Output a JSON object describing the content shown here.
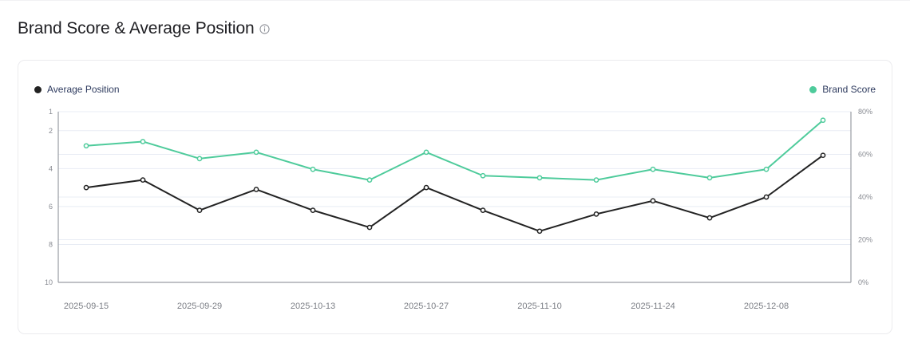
{
  "header": {
    "title": "Brand Score & Average Position",
    "info_icon": "info-circle-icon"
  },
  "legend": {
    "left": {
      "label": "Average Position",
      "color": "#222222"
    },
    "right": {
      "label": "Brand Score",
      "color": "#4ecb9b"
    }
  },
  "chart_data": {
    "type": "line",
    "title": "Brand Score & Average Position",
    "xlabel": "",
    "ylabel_left": "Average Position",
    "ylabel_right": "Brand Score",
    "x": [
      "2025-09-15",
      "2025-09-22",
      "2025-09-29",
      "2025-10-06",
      "2025-10-13",
      "2025-10-20",
      "2025-10-27",
      "2025-11-03",
      "2025-11-10",
      "2025-11-17",
      "2025-11-24",
      "2025-12-01",
      "2025-12-08",
      "2025-12-15"
    ],
    "x_tick_labels": [
      "2025-09-15",
      "2025-09-29",
      "2025-10-13",
      "2025-10-27",
      "2025-11-10",
      "2025-11-24",
      "2025-12-08"
    ],
    "left_axis": {
      "ticks": [
        1,
        2,
        4,
        6,
        8,
        10
      ],
      "range": [
        1,
        10
      ],
      "inverted": true
    },
    "right_axis": {
      "ticks": [
        "0%",
        "20%",
        "40%",
        "60%",
        "80%"
      ],
      "range": [
        0,
        80
      ],
      "unit": "%"
    },
    "series": [
      {
        "name": "Average Position",
        "axis": "left",
        "color": "#222222",
        "values": [
          5.0,
          4.6,
          6.2,
          5.1,
          6.2,
          7.1,
          5.0,
          6.2,
          7.3,
          6.4,
          5.7,
          6.6,
          5.5,
          3.3
        ]
      },
      {
        "name": "Brand Score",
        "axis": "right",
        "color": "#4ecb9b",
        "values": [
          64,
          66,
          58,
          61,
          53,
          48,
          61,
          50,
          49,
          48,
          53,
          49,
          53,
          76
        ]
      }
    ],
    "grid": true,
    "legend_position": "top"
  }
}
